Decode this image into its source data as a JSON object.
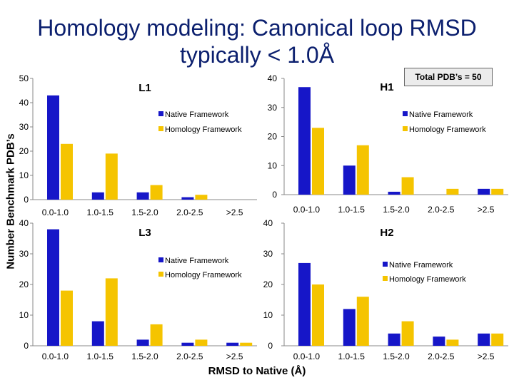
{
  "slide": {
    "title_line1": "Homology modeling: Canonical loop RMSD",
    "title_line2": "typically < 1.0Å",
    "y_axis_label": "Number  Benchmark PDB’s",
    "x_axis_label": "RMSD to Native (Å)",
    "total_note": "Total PDB’s = 50"
  },
  "colors": {
    "native": "#1616c8",
    "homology": "#f5c400",
    "axis": "#888888"
  },
  "chart_data": [
    {
      "type": "bar",
      "title": "L1",
      "categories": [
        "0.0-1.0",
        "1.0-1.5",
        "1.5-2.0",
        "2.0-2.5",
        ">2.5"
      ],
      "yticks": [
        0,
        10,
        20,
        30,
        40,
        50
      ],
      "ylim": [
        0,
        50
      ],
      "series": [
        {
          "name": "Native Framework",
          "values": [
            43,
            3,
            3,
            1,
            0
          ]
        },
        {
          "name": "Homology Framework",
          "values": [
            23,
            19,
            6,
            2,
            0
          ]
        }
      ],
      "legend": "top-right"
    },
    {
      "type": "bar",
      "title": "H1",
      "categories": [
        "0.0-1.0",
        "1.0-1.5",
        "1.5-2.0",
        "2.0-2.5",
        ">2.5"
      ],
      "yticks": [
        0,
        10,
        20,
        30,
        40
      ],
      "ylim": [
        0,
        40
      ],
      "series": [
        {
          "name": "Native Framework",
          "values": [
            37,
            10,
            1,
            0,
            2
          ]
        },
        {
          "name": "Homology Framework",
          "values": [
            23,
            17,
            6,
            2,
            2
          ]
        }
      ],
      "legend": "right"
    },
    {
      "type": "bar",
      "title": "L3",
      "categories": [
        "0.0-1.0",
        "1.0-1.5",
        "1.5-2.0",
        "2.0-2.5",
        ">2.5"
      ],
      "yticks": [
        0,
        10,
        20,
        30,
        40
      ],
      "ylim": [
        0,
        40
      ],
      "series": [
        {
          "name": "Native Framework",
          "values": [
            38,
            8,
            2,
            1,
            1
          ]
        },
        {
          "name": "Homology Framework",
          "values": [
            18,
            22,
            7,
            2,
            1
          ]
        }
      ],
      "legend": "top-right"
    },
    {
      "type": "bar",
      "title": "H2",
      "categories": [
        "0.0-1.0",
        "1.0-1.5",
        "1.5-2.0",
        "2.0-2.5",
        ">2.5"
      ],
      "yticks": [
        0,
        10,
        20,
        30,
        40
      ],
      "ylim": [
        0,
        40
      ],
      "series": [
        {
          "name": "Native Framework",
          "values": [
            27,
            12,
            4,
            3,
            4
          ]
        },
        {
          "name": "Homology Framework",
          "values": [
            20,
            16,
            8,
            2,
            4
          ]
        }
      ],
      "legend": "top-right"
    }
  ]
}
